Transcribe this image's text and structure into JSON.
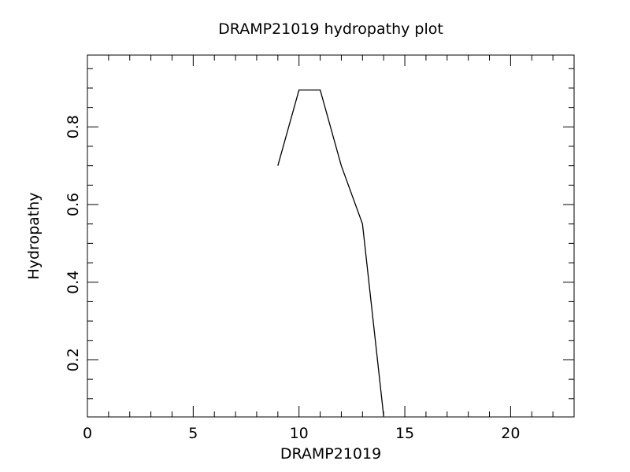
{
  "chart_data": {
    "type": "line",
    "title": "DRAMP21019 hydropathy plot",
    "xlabel": "DRAMP21019",
    "ylabel": "Hydropathy",
    "xlim": [
      0,
      23
    ],
    "ylim": [
      0.053,
      0.985
    ],
    "x_ticks": [
      0,
      5,
      10,
      15,
      20
    ],
    "x_tick_labels": [
      "0",
      "5",
      "10",
      "15",
      "20"
    ],
    "y_ticks": [
      0.2,
      0.4,
      0.6,
      0.8
    ],
    "y_tick_labels": [
      "0.2",
      "0.4",
      "0.6",
      "0.8"
    ],
    "grid": false,
    "legend": "none",
    "series": [
      {
        "x": [
          9,
          10,
          11,
          12,
          13,
          14
        ],
        "y": [
          0.7,
          0.895,
          0.895,
          0.7,
          0.55,
          0.055
        ]
      }
    ]
  }
}
